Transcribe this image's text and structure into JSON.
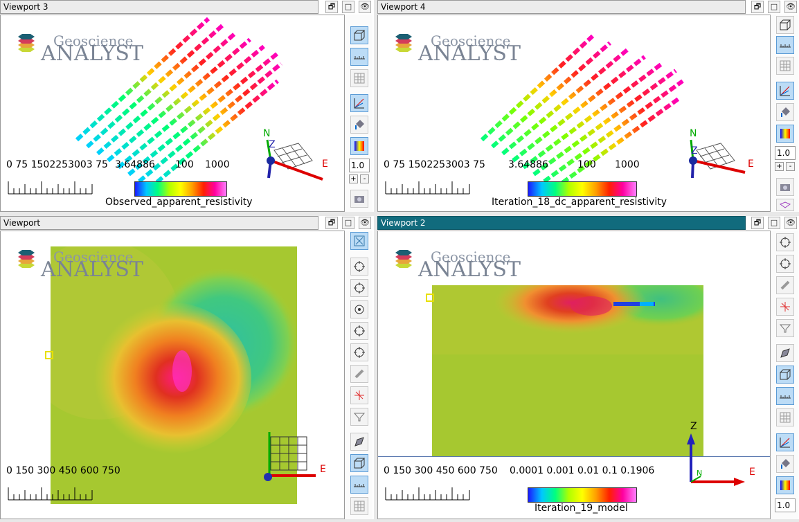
{
  "viewports": {
    "vp3": {
      "title": "Viewport 3",
      "logo_top": "Geoscience",
      "logo_main": "ANALYST",
      "scale_label": "0  75 1502253003 75",
      "cbar_min": "3.64886",
      "cbar_mid": "100",
      "cbar_max": "1000",
      "cbar_title": "Observed_apparent_resistivity",
      "zoom": "1.0"
    },
    "vp4": {
      "title": "Viewport 4",
      "logo_top": "Geoscience",
      "logo_main": "ANALYST",
      "scale_label": "0  75 1502253003 75",
      "cbar_min": "3.64886",
      "cbar_mid": "100",
      "cbar_max": "1000",
      "cbar_title": "Iteration_18_dc_apparent_resistivity",
      "zoom": "1.0"
    },
    "vp1": {
      "title": "Viewport",
      "logo_top": "Geoscience",
      "logo_main": "ANALYST",
      "scale_label": "0 150 300 450 600 750"
    },
    "vp2": {
      "title": "Viewport 2",
      "logo_top": "Geoscience",
      "logo_main": "ANALYST",
      "scale_label": "0 150 300 450 600 750",
      "cbar_labels": "0.0001 0.001  0.01  0.1 0.1906",
      "cbar_title": "Iteration_19_model",
      "zoom": "1.0"
    }
  },
  "axes": {
    "north": "N",
    "east": "E",
    "z": "Z"
  },
  "titlebar_buttons": {
    "restore": "🗗",
    "maximize": "□",
    "hide": "👁"
  },
  "zoom_controls": {
    "plus": "+",
    "minus": "-"
  }
}
